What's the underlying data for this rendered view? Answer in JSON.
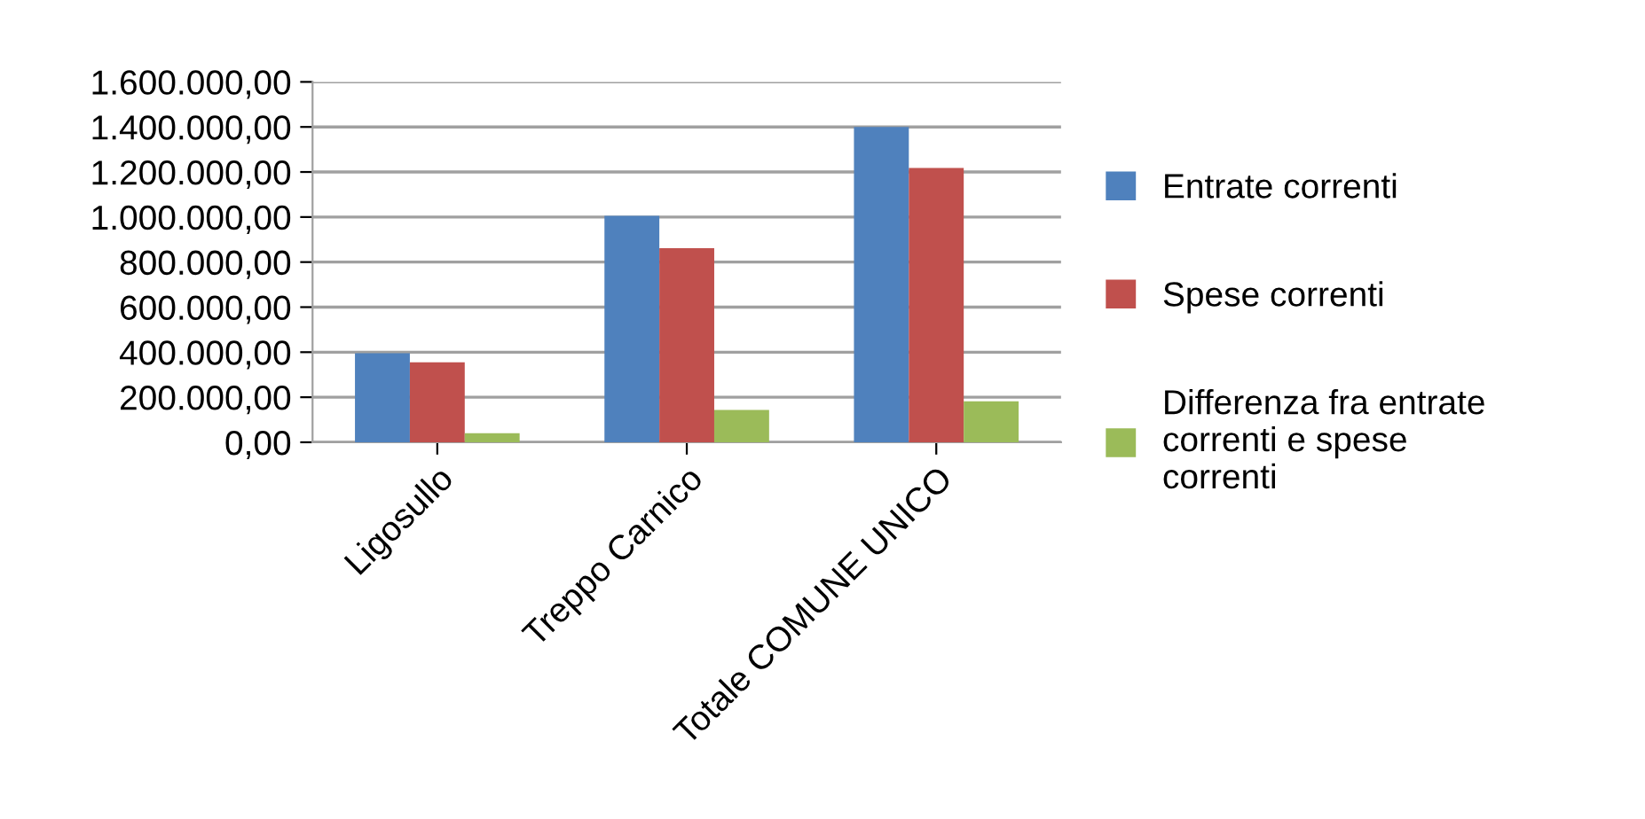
{
  "chart_data": {
    "type": "bar",
    "categories": [
      "Ligosullo",
      "Treppo Carnico",
      "Totale COMUNE UNICO"
    ],
    "series": [
      {
        "name": "Entrate correnti",
        "color": "#4f81bd",
        "values": [
          395000,
          1005000,
          1400000
        ]
      },
      {
        "name": "Spese correnti",
        "color": "#c0504d",
        "values": [
          355000,
          862000,
          1218000
        ]
      },
      {
        "name": "Differenza fra entrate correnti e spese correnti",
        "color": "#9bbb59",
        "values": [
          40000,
          143000,
          182000
        ]
      }
    ],
    "ylim": [
      0,
      1600000
    ],
    "yticks": [
      {
        "value": 0,
        "label": "0,00"
      },
      {
        "value": 200000,
        "label": "200.000,00"
      },
      {
        "value": 400000,
        "label": "400.000,00"
      },
      {
        "value": 600000,
        "label": "600.000,00"
      },
      {
        "value": 800000,
        "label": "800.000,00"
      },
      {
        "value": 1000000,
        "label": "1.000.000,00"
      },
      {
        "value": 1200000,
        "label": "1.200.000,00"
      },
      {
        "value": 1400000,
        "label": "1.400.000,00"
      },
      {
        "value": 1600000,
        "label": "1.600.000,00"
      }
    ],
    "grid": "y",
    "legend": "right"
  }
}
